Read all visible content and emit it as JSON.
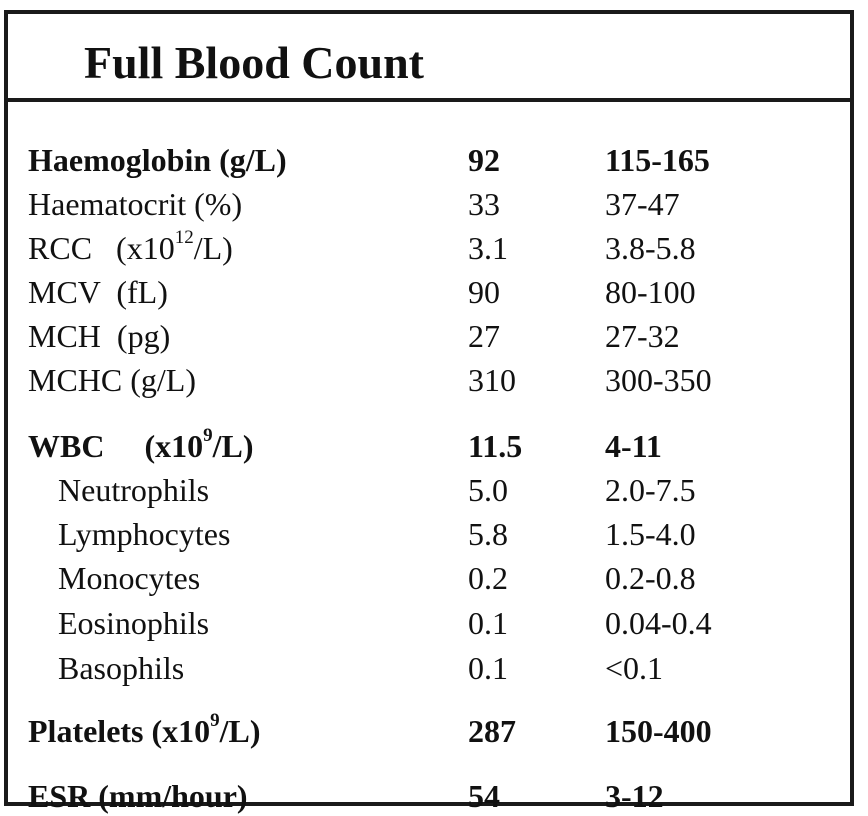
{
  "title": "Full Blood Count",
  "rows": [
    {
      "name": "Haemoglobin (g/L)",
      "value": "92",
      "range": "115-165",
      "bold": true
    },
    {
      "name": "Haematocrit (%)",
      "value": "33",
      "range": "37-47"
    },
    {
      "name_pre": "RCC   (x10",
      "name_sup": "12",
      "name_post": "/L)",
      "value": "3.1",
      "range": "3.8-5.8"
    },
    {
      "name": "MCV  (fL)",
      "value": "90",
      "range": "80-100"
    },
    {
      "name": "MCH  (pg)",
      "value": "27",
      "range": "27-32"
    },
    {
      "name": "MCHC (g/L)",
      "value": "310",
      "range": "300-350"
    },
    {
      "name_pre": "WBC     (x10",
      "name_sup": "9",
      "name_post": "/L)",
      "value": "11.5",
      "range": "4-11",
      "bold": true
    },
    {
      "name": "Neutrophils",
      "value": "5.0",
      "range": "2.0-7.5",
      "indent": true
    },
    {
      "name": "Lymphocytes",
      "value": "5.8",
      "range": "1.5-4.0",
      "indent": true
    },
    {
      "name": "Monocytes",
      "value": "0.2",
      "range": "0.2-0.8",
      "indent": true
    },
    {
      "name": "Eosinophils",
      "value": "0.1",
      "range": "0.04-0.4",
      "indent": true
    },
    {
      "name": "Basophils",
      "value": "0.1",
      "range": "<0.1",
      "indent": true
    },
    {
      "name_pre": "Platelets (x10",
      "name_sup": "9",
      "name_post": "/L)",
      "value": "287",
      "range": "150-400",
      "bold": true
    },
    {
      "name": "ESR (mm/hour)",
      "value": "54",
      "range": "3-12",
      "bold": true
    }
  ]
}
